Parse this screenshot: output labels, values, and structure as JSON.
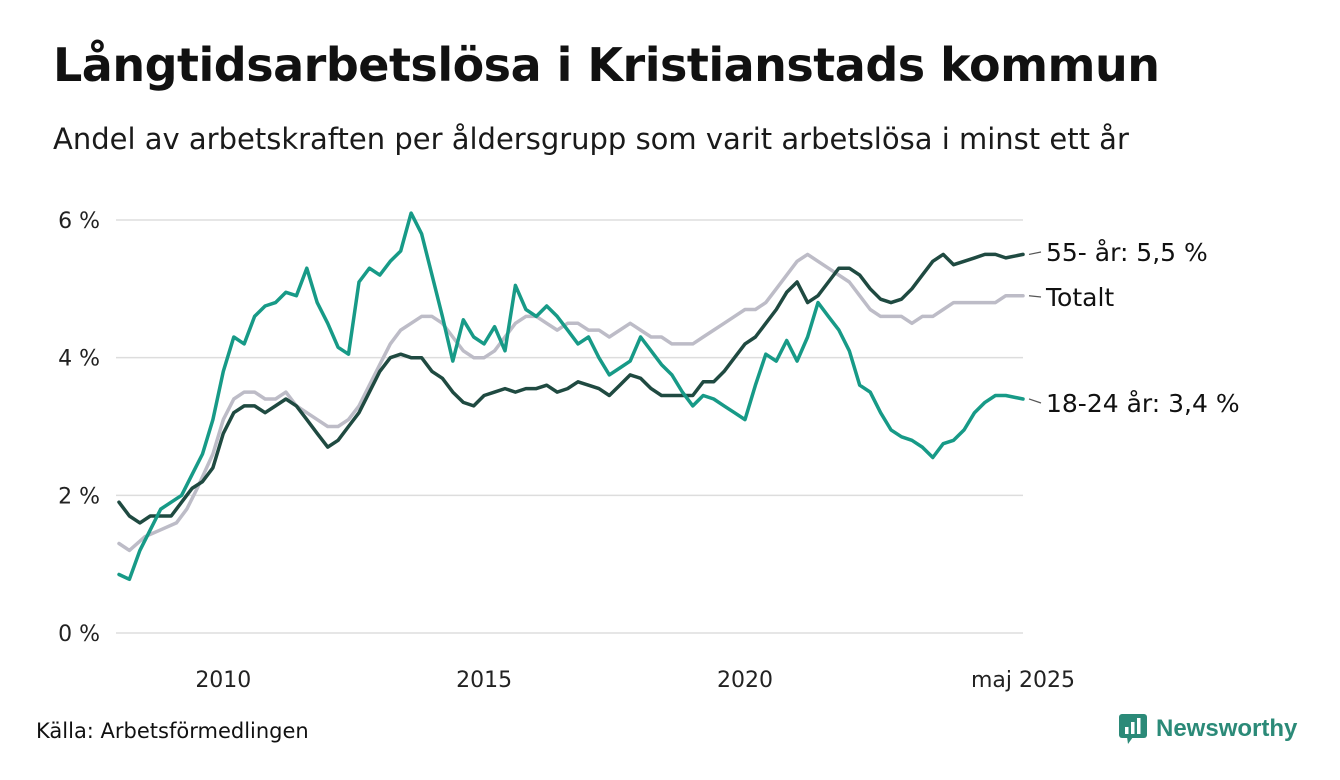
{
  "header": {
    "title": "Långtidsarbetslösa i Kristianstads kommun",
    "subtitle": "Andel av arbetskraften per åldersgrupp som varit arbetslösa i minst ett år"
  },
  "footer": {
    "source": "Källa: Arbetsförmedlingen",
    "brand": "Newsworthy"
  },
  "colors": {
    "series_55": "#1f4a41",
    "series_total": "#bdbcc7",
    "series_1824": "#179a87",
    "grid": "#dddddd",
    "brand": "#2b8a78"
  },
  "chart_data": {
    "type": "line",
    "title": "Långtidsarbetslösa i Kristianstads kommun",
    "subtitle": "Andel av arbetskraften per åldersgrupp som varit arbetslösa i minst ett år",
    "xlabel": "",
    "ylabel": "",
    "x_unit": "year",
    "xlim": [
      2008.0,
      2025.4
    ],
    "ylim": [
      0,
      6
    ],
    "y_ticks": [
      0,
      2,
      4,
      6
    ],
    "y_tick_labels": [
      "0 %",
      "2 %",
      "4 %",
      "6 %"
    ],
    "x_ticks": [
      2010,
      2015,
      2020,
      2025.33
    ],
    "x_tick_labels": [
      "2010",
      "2015",
      "2020",
      "maj 2025"
    ],
    "grid": true,
    "legend": "direct labels at line ends (right)",
    "series": [
      {
        "key": "total",
        "label": "Totalt",
        "color": "#bdbcc7",
        "points": [
          [
            2008.0,
            1.3
          ],
          [
            2008.2,
            1.2
          ],
          [
            2008.5,
            1.4
          ],
          [
            2008.8,
            1.5
          ],
          [
            2009.1,
            1.6
          ],
          [
            2009.3,
            1.8
          ],
          [
            2009.5,
            2.1
          ],
          [
            2009.8,
            2.6
          ],
          [
            2010.0,
            3.1
          ],
          [
            2010.2,
            3.4
          ],
          [
            2010.4,
            3.5
          ],
          [
            2010.6,
            3.5
          ],
          [
            2010.8,
            3.4
          ],
          [
            2011.0,
            3.4
          ],
          [
            2011.2,
            3.5
          ],
          [
            2011.4,
            3.3
          ],
          [
            2011.6,
            3.2
          ],
          [
            2011.8,
            3.1
          ],
          [
            2012.0,
            3.0
          ],
          [
            2012.2,
            3.0
          ],
          [
            2012.4,
            3.1
          ],
          [
            2012.6,
            3.3
          ],
          [
            2012.8,
            3.6
          ],
          [
            2013.0,
            3.9
          ],
          [
            2013.2,
            4.2
          ],
          [
            2013.4,
            4.4
          ],
          [
            2013.6,
            4.5
          ],
          [
            2013.8,
            4.6
          ],
          [
            2014.0,
            4.6
          ],
          [
            2014.2,
            4.5
          ],
          [
            2014.4,
            4.3
          ],
          [
            2014.6,
            4.1
          ],
          [
            2014.8,
            4.0
          ],
          [
            2015.0,
            4.0
          ],
          [
            2015.2,
            4.1
          ],
          [
            2015.4,
            4.3
          ],
          [
            2015.6,
            4.5
          ],
          [
            2015.8,
            4.6
          ],
          [
            2016.0,
            4.6
          ],
          [
            2016.2,
            4.5
          ],
          [
            2016.4,
            4.4
          ],
          [
            2016.6,
            4.5
          ],
          [
            2016.8,
            4.5
          ],
          [
            2017.0,
            4.4
          ],
          [
            2017.2,
            4.4
          ],
          [
            2017.4,
            4.3
          ],
          [
            2017.6,
            4.4
          ],
          [
            2017.8,
            4.5
          ],
          [
            2018.0,
            4.4
          ],
          [
            2018.2,
            4.3
          ],
          [
            2018.4,
            4.3
          ],
          [
            2018.6,
            4.2
          ],
          [
            2018.8,
            4.2
          ],
          [
            2019.0,
            4.2
          ],
          [
            2019.2,
            4.3
          ],
          [
            2019.4,
            4.4
          ],
          [
            2019.6,
            4.5
          ],
          [
            2019.8,
            4.6
          ],
          [
            2020.0,
            4.7
          ],
          [
            2020.2,
            4.7
          ],
          [
            2020.4,
            4.8
          ],
          [
            2020.6,
            5.0
          ],
          [
            2020.8,
            5.2
          ],
          [
            2021.0,
            5.4
          ],
          [
            2021.2,
            5.5
          ],
          [
            2021.4,
            5.4
          ],
          [
            2021.6,
            5.3
          ],
          [
            2021.8,
            5.2
          ],
          [
            2022.0,
            5.1
          ],
          [
            2022.2,
            4.9
          ],
          [
            2022.4,
            4.7
          ],
          [
            2022.6,
            4.6
          ],
          [
            2022.8,
            4.6
          ],
          [
            2023.0,
            4.6
          ],
          [
            2023.2,
            4.5
          ],
          [
            2023.4,
            4.6
          ],
          [
            2023.6,
            4.6
          ],
          [
            2023.8,
            4.7
          ],
          [
            2024.0,
            4.8
          ],
          [
            2024.2,
            4.8
          ],
          [
            2024.4,
            4.8
          ],
          [
            2024.6,
            4.8
          ],
          [
            2024.8,
            4.8
          ],
          [
            2025.0,
            4.9
          ],
          [
            2025.33,
            4.9
          ]
        ]
      },
      {
        "key": "age_55",
        "label": "55- år: 5,5 %",
        "color": "#1f4a41",
        "points": [
          [
            2008.0,
            1.9
          ],
          [
            2008.2,
            1.7
          ],
          [
            2008.4,
            1.6
          ],
          [
            2008.6,
            1.7
          ],
          [
            2008.8,
            1.7
          ],
          [
            2009.0,
            1.7
          ],
          [
            2009.2,
            1.9
          ],
          [
            2009.4,
            2.1
          ],
          [
            2009.6,
            2.2
          ],
          [
            2009.8,
            2.4
          ],
          [
            2010.0,
            2.9
          ],
          [
            2010.2,
            3.2
          ],
          [
            2010.4,
            3.3
          ],
          [
            2010.6,
            3.3
          ],
          [
            2010.8,
            3.2
          ],
          [
            2011.0,
            3.3
          ],
          [
            2011.2,
            3.4
          ],
          [
            2011.4,
            3.3
          ],
          [
            2011.6,
            3.1
          ],
          [
            2011.8,
            2.9
          ],
          [
            2012.0,
            2.7
          ],
          [
            2012.2,
            2.8
          ],
          [
            2012.4,
            3.0
          ],
          [
            2012.6,
            3.2
          ],
          [
            2012.8,
            3.5
          ],
          [
            2013.0,
            3.8
          ],
          [
            2013.2,
            4.0
          ],
          [
            2013.4,
            4.05
          ],
          [
            2013.6,
            4.0
          ],
          [
            2013.8,
            4.0
          ],
          [
            2014.0,
            3.8
          ],
          [
            2014.2,
            3.7
          ],
          [
            2014.4,
            3.5
          ],
          [
            2014.6,
            3.35
          ],
          [
            2014.8,
            3.3
          ],
          [
            2015.0,
            3.45
          ],
          [
            2015.2,
            3.5
          ],
          [
            2015.4,
            3.55
          ],
          [
            2015.6,
            3.5
          ],
          [
            2015.8,
            3.55
          ],
          [
            2016.0,
            3.55
          ],
          [
            2016.2,
            3.6
          ],
          [
            2016.4,
            3.5
          ],
          [
            2016.6,
            3.55
          ],
          [
            2016.8,
            3.65
          ],
          [
            2017.0,
            3.6
          ],
          [
            2017.2,
            3.55
          ],
          [
            2017.4,
            3.45
          ],
          [
            2017.6,
            3.6
          ],
          [
            2017.8,
            3.75
          ],
          [
            2018.0,
            3.7
          ],
          [
            2018.2,
            3.55
          ],
          [
            2018.4,
            3.45
          ],
          [
            2018.6,
            3.45
          ],
          [
            2018.8,
            3.45
          ],
          [
            2019.0,
            3.45
          ],
          [
            2019.2,
            3.65
          ],
          [
            2019.4,
            3.65
          ],
          [
            2019.6,
            3.8
          ],
          [
            2019.8,
            4.0
          ],
          [
            2020.0,
            4.2
          ],
          [
            2020.2,
            4.3
          ],
          [
            2020.4,
            4.5
          ],
          [
            2020.6,
            4.7
          ],
          [
            2020.8,
            4.95
          ],
          [
            2021.0,
            5.1
          ],
          [
            2021.2,
            4.8
          ],
          [
            2021.4,
            4.9
          ],
          [
            2021.6,
            5.1
          ],
          [
            2021.8,
            5.3
          ],
          [
            2022.0,
            5.3
          ],
          [
            2022.2,
            5.2
          ],
          [
            2022.4,
            5.0
          ],
          [
            2022.6,
            4.85
          ],
          [
            2022.8,
            4.8
          ],
          [
            2023.0,
            4.85
          ],
          [
            2023.2,
            5.0
          ],
          [
            2023.4,
            5.2
          ],
          [
            2023.6,
            5.4
          ],
          [
            2023.8,
            5.5
          ],
          [
            2024.0,
            5.35
          ],
          [
            2024.2,
            5.4
          ],
          [
            2024.4,
            5.45
          ],
          [
            2024.6,
            5.5
          ],
          [
            2024.8,
            5.5
          ],
          [
            2025.0,
            5.45
          ],
          [
            2025.33,
            5.5
          ]
        ]
      },
      {
        "key": "age_18_24",
        "label": "18-24 år: 3,4 %",
        "color": "#179a87",
        "points": [
          [
            2008.0,
            0.85
          ],
          [
            2008.2,
            0.78
          ],
          [
            2008.4,
            1.2
          ],
          [
            2008.6,
            1.5
          ],
          [
            2008.8,
            1.8
          ],
          [
            2009.0,
            1.9
          ],
          [
            2009.2,
            2.0
          ],
          [
            2009.4,
            2.3
          ],
          [
            2009.6,
            2.6
          ],
          [
            2009.8,
            3.1
          ],
          [
            2010.0,
            3.8
          ],
          [
            2010.2,
            4.3
          ],
          [
            2010.4,
            4.2
          ],
          [
            2010.6,
            4.6
          ],
          [
            2010.8,
            4.75
          ],
          [
            2011.0,
            4.8
          ],
          [
            2011.2,
            4.95
          ],
          [
            2011.4,
            4.9
          ],
          [
            2011.6,
            5.3
          ],
          [
            2011.8,
            4.8
          ],
          [
            2012.0,
            4.5
          ],
          [
            2012.2,
            4.15
          ],
          [
            2012.4,
            4.05
          ],
          [
            2012.6,
            5.1
          ],
          [
            2012.8,
            5.3
          ],
          [
            2013.0,
            5.2
          ],
          [
            2013.2,
            5.4
          ],
          [
            2013.4,
            5.55
          ],
          [
            2013.6,
            6.1
          ],
          [
            2013.8,
            5.8
          ],
          [
            2014.0,
            5.2
          ],
          [
            2014.2,
            4.6
          ],
          [
            2014.4,
            3.95
          ],
          [
            2014.6,
            4.55
          ],
          [
            2014.8,
            4.3
          ],
          [
            2015.0,
            4.2
          ],
          [
            2015.2,
            4.45
          ],
          [
            2015.4,
            4.1
          ],
          [
            2015.6,
            5.05
          ],
          [
            2015.8,
            4.7
          ],
          [
            2016.0,
            4.6
          ],
          [
            2016.2,
            4.75
          ],
          [
            2016.4,
            4.6
          ],
          [
            2016.6,
            4.4
          ],
          [
            2016.8,
            4.2
          ],
          [
            2017.0,
            4.3
          ],
          [
            2017.2,
            4.0
          ],
          [
            2017.4,
            3.75
          ],
          [
            2017.6,
            3.85
          ],
          [
            2017.8,
            3.95
          ],
          [
            2018.0,
            4.3
          ],
          [
            2018.2,
            4.1
          ],
          [
            2018.4,
            3.9
          ],
          [
            2018.6,
            3.75
          ],
          [
            2018.8,
            3.5
          ],
          [
            2019.0,
            3.3
          ],
          [
            2019.2,
            3.45
          ],
          [
            2019.4,
            3.4
          ],
          [
            2019.6,
            3.3
          ],
          [
            2019.8,
            3.2
          ],
          [
            2020.0,
            3.1
          ],
          [
            2020.2,
            3.6
          ],
          [
            2020.4,
            4.05
          ],
          [
            2020.6,
            3.95
          ],
          [
            2020.8,
            4.25
          ],
          [
            2021.0,
            3.95
          ],
          [
            2021.2,
            4.3
          ],
          [
            2021.4,
            4.8
          ],
          [
            2021.6,
            4.6
          ],
          [
            2021.8,
            4.4
          ],
          [
            2022.0,
            4.1
          ],
          [
            2022.2,
            3.6
          ],
          [
            2022.4,
            3.5
          ],
          [
            2022.6,
            3.2
          ],
          [
            2022.8,
            2.95
          ],
          [
            2023.0,
            2.85
          ],
          [
            2023.2,
            2.8
          ],
          [
            2023.4,
            2.7
          ],
          [
            2023.6,
            2.55
          ],
          [
            2023.8,
            2.75
          ],
          [
            2024.0,
            2.8
          ],
          [
            2024.2,
            2.95
          ],
          [
            2024.4,
            3.2
          ],
          [
            2024.6,
            3.35
          ],
          [
            2024.8,
            3.45
          ],
          [
            2025.0,
            3.45
          ],
          [
            2025.33,
            3.4
          ]
        ]
      }
    ]
  }
}
